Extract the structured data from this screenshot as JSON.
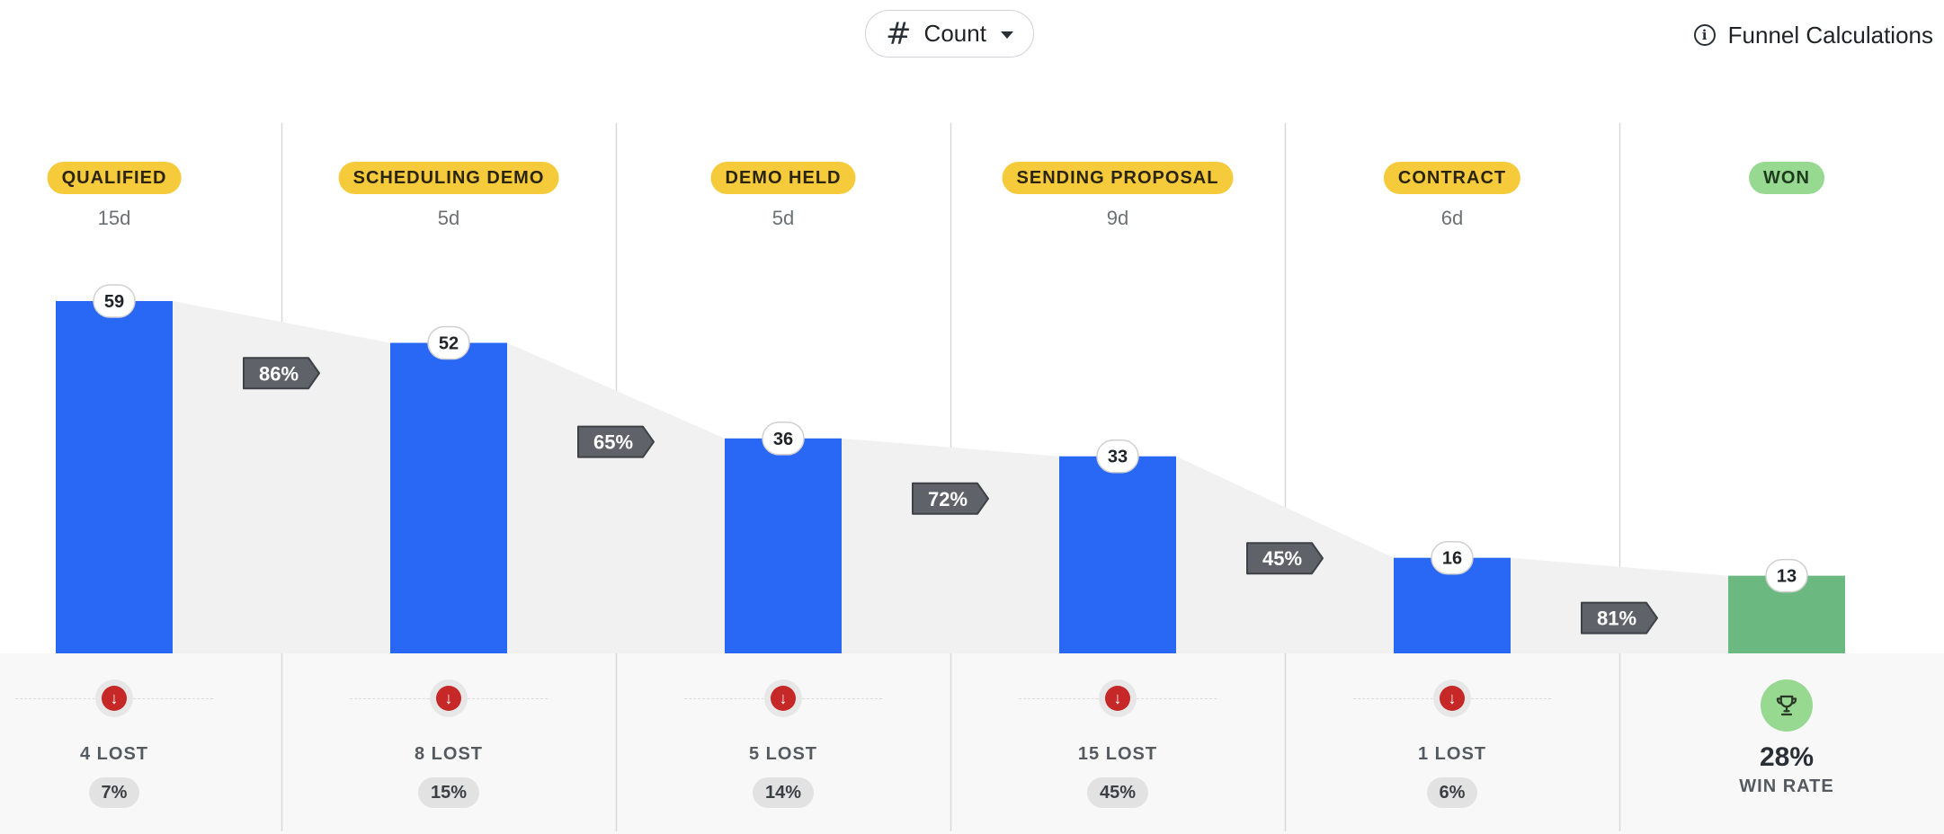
{
  "toolbar": {
    "metric_icon": "hash-icon",
    "metric_label": "Count",
    "funnel_calc_icon": "info-icon",
    "funnel_calc_label": "Funnel Calculations"
  },
  "colors": {
    "bar": "#2968f5",
    "won_bar": "#6bb981",
    "stage_badge": "#f5cb3b",
    "won_badge": "#98d992",
    "conversion_tag": "#5f6268",
    "lost_icon": "#c62828",
    "area": "#f1f1f1"
  },
  "stages": [
    {
      "name": "QUALIFIED",
      "days": "15d",
      "count": 59,
      "lost": "4 LOST",
      "lost_pct": "7%"
    },
    {
      "name": "SCHEDULING DEMO",
      "days": "5d",
      "count": 52,
      "lost": "8 LOST",
      "lost_pct": "15%"
    },
    {
      "name": "DEMO HELD",
      "days": "5d",
      "count": 36,
      "lost": "5 LOST",
      "lost_pct": "14%"
    },
    {
      "name": "SENDING PROPOSAL",
      "days": "9d",
      "count": 33,
      "lost": "15 LOST",
      "lost_pct": "45%"
    },
    {
      "name": "CONTRACT",
      "days": "6d",
      "count": 16,
      "lost": "1 LOST",
      "lost_pct": "6%"
    },
    {
      "name": "WON",
      "days": "",
      "count": 13
    }
  ],
  "conversions": [
    "86%",
    "65%",
    "72%",
    "45%",
    "81%"
  ],
  "win": {
    "rate": "28%",
    "label": "WIN RATE",
    "icon": "trophy-icon"
  },
  "chart_data": {
    "type": "bar",
    "categories": [
      "QUALIFIED",
      "SCHEDULING DEMO",
      "DEMO HELD",
      "SENDING PROPOSAL",
      "CONTRACT",
      "WON"
    ],
    "values": [
      59,
      52,
      36,
      33,
      16,
      13
    ],
    "conversion_rates": [
      "86%",
      "65%",
      "72%",
      "45%",
      "81%"
    ],
    "stage_durations": [
      "15d",
      "5d",
      "5d",
      "9d",
      "6d",
      ""
    ],
    "lost_counts": [
      4,
      8,
      5,
      15,
      1
    ],
    "lost_percentages": [
      "7%",
      "15%",
      "14%",
      "45%",
      "6%"
    ],
    "win_rate": "28%",
    "ylim": [
      0,
      59
    ],
    "grid": false,
    "legend": "none"
  }
}
